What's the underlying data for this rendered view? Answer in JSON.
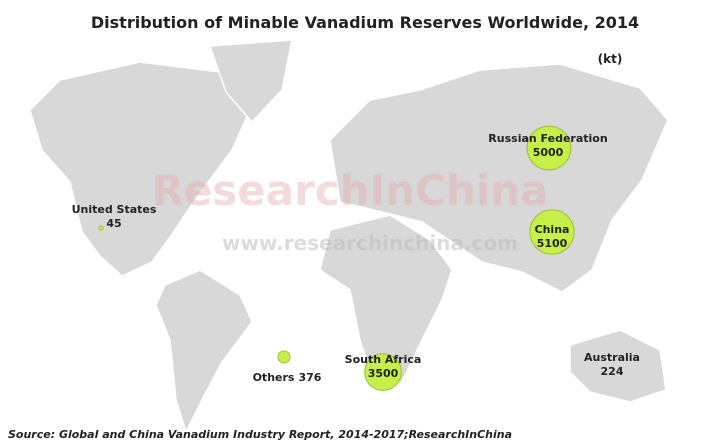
{
  "header": {
    "title": "Distribution of Minable Vanadium Reserves Worldwide, 2014",
    "unit": "(kt)"
  },
  "watermark": {
    "brand": "ResearchInChina",
    "url": "www.researchinchina.com"
  },
  "regions": [
    {
      "name": "Russian Federation",
      "value": 5000
    },
    {
      "name": "China",
      "value": 5100
    },
    {
      "name": "United States",
      "value": 45
    },
    {
      "name": "South Africa",
      "value": 3500
    },
    {
      "name": "Australia",
      "value": 224
    },
    {
      "name": "Others",
      "value": 376
    }
  ],
  "source": "Source: Global and China Vanadium Industry Report, 2014-2017;ResearchInChina"
}
